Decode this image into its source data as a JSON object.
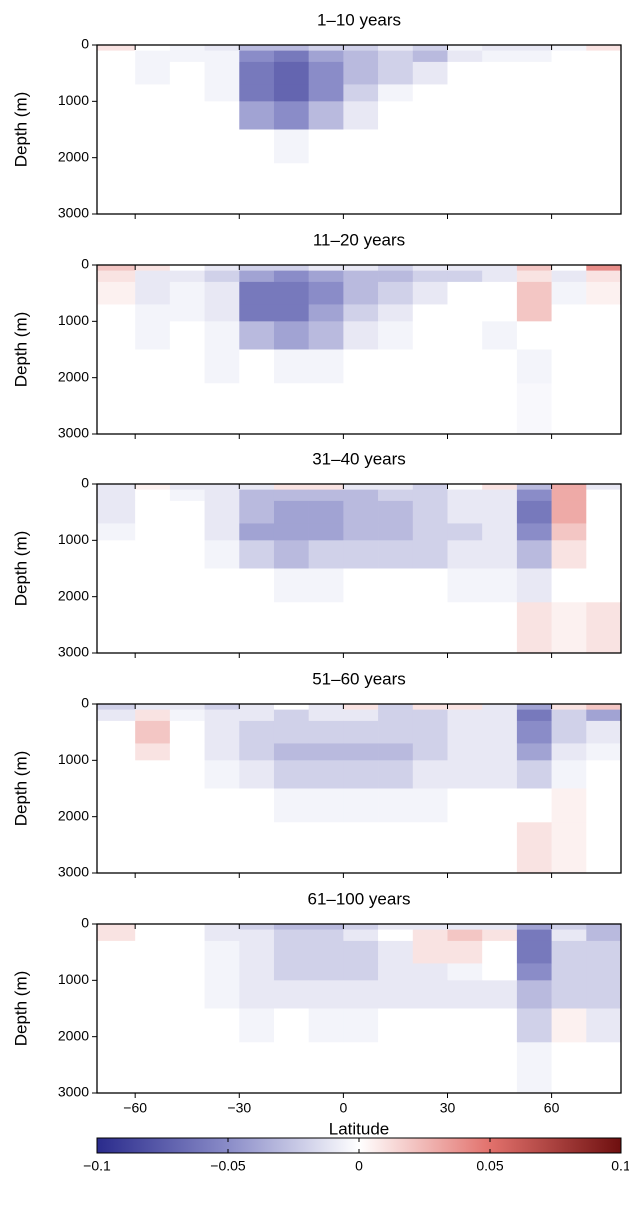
{
  "chart_data": [
    {
      "type": "heatmap",
      "title": "1–10 years",
      "ylabel": "Depth (m)",
      "x_edges": [
        -71,
        -60,
        -50,
        -40,
        -30,
        -20,
        -10,
        0,
        10,
        20,
        30,
        40,
        50,
        60,
        70,
        80
      ],
      "y_edges": [
        0,
        100,
        300,
        700,
        1000,
        1500,
        2100,
        3000
      ],
      "values": [
        [
          0.01,
          0,
          -0.005,
          -0.01,
          -0.03,
          -0.03,
          -0.02,
          -0.02,
          -0.01,
          -0.02,
          -0.005,
          -0.01,
          -0.01,
          -0.005,
          0.01
        ],
        [
          0,
          -0.005,
          -0.005,
          -0.005,
          -0.05,
          -0.06,
          -0.04,
          -0.03,
          -0.02,
          -0.03,
          -0.01,
          -0.005,
          -0.005,
          0,
          0
        ],
        [
          0,
          -0.005,
          0,
          -0.005,
          -0.06,
          -0.07,
          -0.05,
          -0.03,
          -0.02,
          -0.01,
          0,
          0,
          0,
          0,
          0
        ],
        [
          0,
          0,
          0,
          -0.005,
          -0.06,
          -0.07,
          -0.05,
          -0.02,
          -0.005,
          0,
          0,
          0,
          0,
          0,
          0
        ],
        [
          0,
          0,
          0,
          0,
          -0.04,
          -0.05,
          -0.03,
          -0.01,
          0,
          0,
          0,
          0,
          0,
          0,
          0
        ],
        [
          0,
          0,
          0,
          0,
          0,
          -0.005,
          0,
          0,
          0,
          0,
          0,
          0,
          0,
          0,
          0
        ],
        [
          0,
          0,
          0,
          0,
          0,
          0,
          0,
          0,
          0,
          0,
          0,
          0,
          0,
          0,
          0
        ]
      ],
      "xlim": [
        -71,
        80
      ],
      "ylim": [
        3000,
        0
      ],
      "xticks": [
        -60,
        -30,
        0,
        30,
        60
      ],
      "yticks": [
        0,
        1000,
        2000,
        3000
      ]
    },
    {
      "type": "heatmap",
      "title": "11–20 years",
      "ylabel": "Depth (m)",
      "x_edges": [
        -71,
        -60,
        -50,
        -40,
        -30,
        -20,
        -10,
        0,
        10,
        20,
        30,
        40,
        50,
        60,
        70,
        80
      ],
      "y_edges": [
        0,
        100,
        300,
        700,
        1000,
        1500,
        2100,
        3000
      ],
      "values": [
        [
          0.02,
          0.01,
          0,
          -0.01,
          -0.02,
          -0.02,
          -0.01,
          -0.01,
          -0.02,
          -0.01,
          -0.01,
          -0.01,
          0.02,
          0,
          0.04
        ],
        [
          0.01,
          -0.01,
          -0.01,
          -0.02,
          -0.04,
          -0.05,
          -0.04,
          -0.03,
          -0.03,
          -0.02,
          -0.02,
          -0.01,
          0.01,
          -0.01,
          0.01
        ],
        [
          0.005,
          -0.01,
          -0.005,
          -0.01,
          -0.06,
          -0.06,
          -0.05,
          -0.03,
          -0.02,
          -0.01,
          0,
          0,
          0.02,
          -0.005,
          0.005
        ],
        [
          0,
          -0.005,
          -0.005,
          -0.01,
          -0.06,
          -0.06,
          -0.04,
          -0.02,
          -0.01,
          0,
          0,
          0,
          0.02,
          0,
          0
        ],
        [
          0,
          -0.005,
          0,
          -0.005,
          -0.03,
          -0.04,
          -0.03,
          -0.01,
          -0.005,
          0,
          0,
          -0.005,
          0,
          0,
          0
        ],
        [
          0,
          0,
          0,
          -0.005,
          0,
          -0.005,
          -0.005,
          0,
          0,
          0,
          0,
          0,
          -0.005,
          0,
          0
        ],
        [
          0,
          0,
          0,
          0,
          0,
          0,
          0,
          0,
          0,
          0,
          0,
          0,
          -0.003,
          0,
          0
        ]
      ],
      "xlim": [
        -71,
        80
      ],
      "ylim": [
        3000,
        0
      ],
      "xticks": [
        -60,
        -30,
        0,
        30,
        60
      ],
      "yticks": [
        0,
        1000,
        2000,
        3000
      ]
    },
    {
      "type": "heatmap",
      "title": "31–40 years",
      "ylabel": "Depth (m)",
      "x_edges": [
        -71,
        -60,
        -50,
        -40,
        -30,
        -20,
        -10,
        0,
        10,
        20,
        30,
        40,
        50,
        60,
        70,
        80
      ],
      "y_edges": [
        0,
        100,
        300,
        700,
        1000,
        1500,
        2100,
        3000
      ],
      "values": [
        [
          -0.01,
          0.005,
          -0.01,
          -0.01,
          -0.01,
          0.01,
          0.01,
          -0.01,
          -0.01,
          -0.02,
          0,
          0.01,
          -0.03,
          0.03,
          -0.01
        ],
        [
          -0.01,
          0,
          -0.005,
          -0.01,
          -0.03,
          -0.03,
          -0.03,
          -0.03,
          -0.02,
          -0.02,
          -0.01,
          -0.01,
          -0.05,
          0.03,
          0
        ],
        [
          -0.01,
          0,
          0,
          -0.01,
          -0.03,
          -0.04,
          -0.04,
          -0.03,
          -0.03,
          -0.02,
          -0.01,
          -0.01,
          -0.06,
          0.03,
          0
        ],
        [
          -0.005,
          0,
          0,
          -0.01,
          -0.04,
          -0.04,
          -0.04,
          -0.03,
          -0.03,
          -0.02,
          -0.02,
          -0.01,
          -0.05,
          0.02,
          0
        ],
        [
          0,
          0,
          0,
          -0.005,
          -0.02,
          -0.03,
          -0.02,
          -0.02,
          -0.02,
          -0.02,
          -0.01,
          -0.01,
          -0.03,
          0.01,
          0
        ],
        [
          0,
          0,
          0,
          0,
          0,
          -0.005,
          -0.005,
          0,
          0,
          0,
          -0.005,
          -0.005,
          -0.01,
          0,
          0
        ],
        [
          0,
          0,
          0,
          0,
          0,
          0,
          0,
          0,
          0,
          0,
          0,
          0,
          0.01,
          0.005,
          0.01
        ]
      ],
      "xlim": [
        -71,
        80
      ],
      "ylim": [
        3000,
        0
      ],
      "xticks": [
        -60,
        -30,
        0,
        30,
        60
      ],
      "yticks": [
        0,
        1000,
        2000,
        3000
      ]
    },
    {
      "type": "heatmap",
      "title": "51–60 years",
      "ylabel": "Depth (m)",
      "x_edges": [
        -71,
        -60,
        -50,
        -40,
        -30,
        -20,
        -10,
        0,
        10,
        20,
        30,
        40,
        50,
        60,
        70,
        80
      ],
      "y_edges": [
        0,
        100,
        300,
        700,
        1000,
        1500,
        2100,
        3000
      ],
      "values": [
        [
          -0.02,
          -0.01,
          -0.01,
          -0.02,
          -0.01,
          0,
          -0.01,
          0.01,
          -0.02,
          0.01,
          0.01,
          -0.01,
          -0.04,
          0.01,
          0.02
        ],
        [
          -0.01,
          0.01,
          -0.005,
          -0.01,
          -0.01,
          -0.02,
          -0.01,
          -0.01,
          -0.02,
          -0.02,
          -0.01,
          -0.01,
          -0.06,
          -0.02,
          -0.04
        ],
        [
          0,
          0.02,
          0,
          -0.01,
          -0.02,
          -0.02,
          -0.02,
          -0.02,
          -0.02,
          -0.02,
          -0.01,
          -0.01,
          -0.05,
          -0.02,
          -0.01
        ],
        [
          0,
          0.01,
          0,
          -0.01,
          -0.02,
          -0.03,
          -0.03,
          -0.03,
          -0.03,
          -0.02,
          -0.01,
          -0.01,
          -0.04,
          -0.01,
          -0.005
        ],
        [
          0,
          0,
          0,
          -0.005,
          -0.01,
          -0.02,
          -0.02,
          -0.02,
          -0.02,
          -0.01,
          -0.01,
          -0.01,
          -0.02,
          -0.005,
          0
        ],
        [
          0,
          0,
          0,
          0,
          0,
          -0.005,
          -0.005,
          -0.005,
          -0.005,
          -0.005,
          0,
          0,
          0,
          0.005,
          0
        ],
        [
          0,
          0,
          0,
          0,
          0,
          0,
          0,
          0,
          0,
          0,
          0,
          0,
          0.01,
          0.005,
          0
        ]
      ],
      "xlim": [
        -71,
        80
      ],
      "ylim": [
        3000,
        0
      ],
      "xticks": [
        -60,
        -30,
        0,
        30,
        60
      ],
      "yticks": [
        0,
        1000,
        2000,
        3000
      ]
    },
    {
      "type": "heatmap",
      "title": "61–100 years",
      "ylabel": "Depth (m)",
      "xlabel": "Latitude",
      "x_edges": [
        -71,
        -60,
        -50,
        -40,
        -30,
        -20,
        -10,
        0,
        10,
        20,
        30,
        40,
        50,
        60,
        70,
        80
      ],
      "y_edges": [
        0,
        100,
        300,
        700,
        1000,
        1500,
        2100,
        3000
      ],
      "values": [
        [
          0.01,
          0,
          0,
          -0.01,
          -0.02,
          -0.03,
          -0.03,
          -0.02,
          -0.01,
          -0.01,
          -0.01,
          -0.01,
          -0.04,
          -0.02,
          -0.03
        ],
        [
          0.01,
          0,
          0,
          -0.01,
          -0.01,
          -0.02,
          -0.02,
          -0.01,
          0,
          0.01,
          0.02,
          0.01,
          -0.06,
          -0.01,
          -0.03
        ],
        [
          0,
          0,
          0,
          -0.005,
          -0.01,
          -0.02,
          -0.02,
          -0.02,
          -0.01,
          0.01,
          0.01,
          0,
          -0.06,
          -0.02,
          -0.02
        ],
        [
          0,
          0,
          0,
          -0.005,
          -0.01,
          -0.02,
          -0.02,
          -0.02,
          -0.01,
          -0.01,
          -0.005,
          0,
          -0.05,
          -0.02,
          -0.02
        ],
        [
          0,
          0,
          0,
          -0.005,
          -0.01,
          -0.01,
          -0.01,
          -0.01,
          -0.01,
          -0.01,
          -0.01,
          -0.01,
          -0.03,
          -0.02,
          -0.02
        ],
        [
          0,
          0,
          0,
          0,
          -0.005,
          0,
          -0.005,
          -0.005,
          0,
          0,
          0,
          0,
          -0.02,
          0.005,
          -0.01
        ],
        [
          0,
          0,
          0,
          0,
          0,
          0,
          0,
          0,
          0,
          0,
          0,
          0,
          -0.005,
          0,
          0
        ]
      ],
      "xlim": [
        -71,
        80
      ],
      "ylim": [
        3000,
        0
      ],
      "xticks": [
        {
          "value": -60,
          "label": "−60"
        },
        {
          "value": -30,
          "label": "−30"
        },
        0,
        30,
        60
      ],
      "yticks": [
        0,
        1000,
        2000,
        3000
      ]
    },
    {
      "type": "colorbar",
      "clim": [
        -0.1,
        0.1
      ],
      "colors": [
        "#2a2b8c",
        "#8a8cc8",
        "#ffffff",
        "#e2716c",
        "#6e0f0f"
      ],
      "ticks": [
        {
          "value": -0.1,
          "label": "−0.1"
        },
        {
          "value": -0.05,
          "label": "−0.05"
        },
        0,
        0.05,
        0.1
      ]
    }
  ]
}
